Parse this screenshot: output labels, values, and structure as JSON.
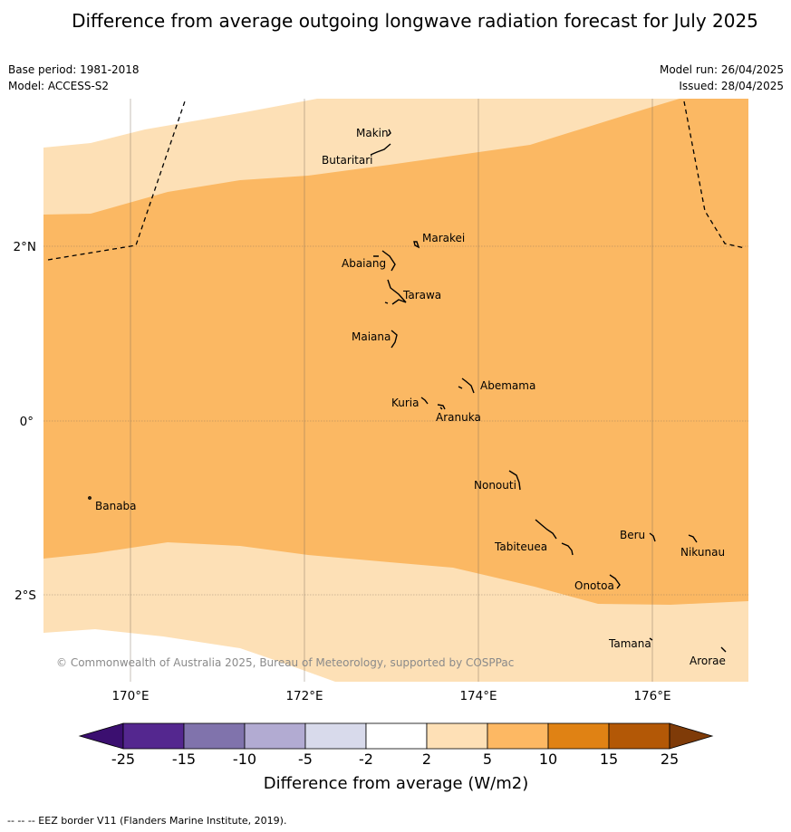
{
  "header": {
    "title": "Difference from average outgoing longwave radiation forecast for July 2025",
    "base_period": "Base period: 1981-2018",
    "model": "Model: ACCESS-S2",
    "model_run": "Model run: 26/04/2025",
    "issued": "Issued: 28/04/2025"
  },
  "map": {
    "longitude_labels": [
      "170°E",
      "172°E",
      "174°E",
      "176°E"
    ],
    "latitude_labels": [
      "2°N",
      "0°",
      "2°S"
    ],
    "places": {
      "makin": "Makin",
      "butaritari": "Butaritari",
      "marakei": "Marakei",
      "abaiang": "Abaiang",
      "tarawa": "Tarawa",
      "maiana": "Maiana",
      "abemama": "Abemama",
      "kuria": "Kuria",
      "aranuka": "Aranuka",
      "nonouti": "Nonouti",
      "banaba": "Banaba",
      "tabiteuea": "Tabiteuea",
      "beru": "Beru",
      "nikunau": "Nikunau",
      "onotoa": "Onotoa",
      "tamana": "Tamana",
      "arorae": "Arorae"
    },
    "shading_colors": {
      "band_2_to_5": "#fde0b6",
      "band_5_to_10": "#fbb863"
    },
    "copyright": "© Commonwealth of Australia 2025, Bureau of Meteorology, supported by COSPPac"
  },
  "colorbar": {
    "ticks": [
      "-25",
      "-15",
      "-10",
      "-5",
      "-2",
      "2",
      "5",
      "10",
      "15",
      "25"
    ],
    "colors": [
      "#3b0f70",
      "#54278f",
      "#8073ac",
      "#b2abd2",
      "#d8daeb",
      "#ffffff",
      "#fee0b6",
      "#fdb863",
      "#e08214",
      "#b35806",
      "#7f3b08"
    ],
    "label": "Difference from average (W/m2)"
  },
  "footer": {
    "eez_note": "--  --  -- EEZ border V11 (Flanders Marine Institute, 2019)."
  }
}
